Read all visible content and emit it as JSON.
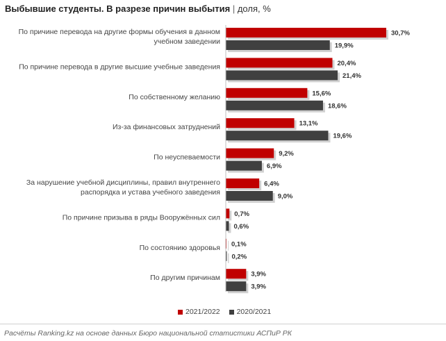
{
  "chart_data": {
    "type": "bar",
    "orientation": "horizontal",
    "title": "Выбывшие студенты. В разрезе причин выбытия",
    "title_separator": "|",
    "subtitle": "доля, %",
    "categories": [
      "По причине перевода на другие формы обучения в данном учебном заведении",
      "По причине перевода в другие высшие учебные заведения",
      "По собственному желанию",
      "Из-за финансовых затруднений",
      "По неуспеваемости",
      "За нарушение учебной дисциплины, правил внутреннего распорядка и устава учебного заведения",
      "По причине призыва в ряды Вооружённых сил",
      "По состоянию здоровья",
      "По другим причинам"
    ],
    "category_lines": [
      [
        "По причине перевода на другие формы обучения в данном",
        "учебном заведении"
      ],
      [
        "По причине перевода в другие высшие учебные заведения"
      ],
      [
        "По собственному желанию"
      ],
      [
        "Из-за финансовых затруднений"
      ],
      [
        "По неуспеваемости"
      ],
      [
        "За нарушение учебной дисциплины, правил внутреннего",
        "распорядка и устава учебного заведения"
      ],
      [
        "По причине призыва в ряды Вооружённых сил"
      ],
      [
        "По состоянию здоровья"
      ],
      [
        "По другим причинам"
      ]
    ],
    "series": [
      {
        "name": "2021/2022",
        "color": "#c00000",
        "values": [
          30.7,
          20.4,
          15.6,
          13.1,
          9.2,
          6.4,
          0.7,
          0.1,
          3.9
        ],
        "labels": [
          "30,7%",
          "20,4%",
          "15,6%",
          "13,1%",
          "9,2%",
          "6,4%",
          "0,7%",
          "0,1%",
          "3,9%"
        ]
      },
      {
        "name": "2020/2021",
        "color": "#404040",
        "values": [
          19.9,
          21.4,
          18.6,
          19.6,
          6.9,
          9.0,
          0.6,
          0.2,
          3.9
        ],
        "labels": [
          "19,9%",
          "21,4%",
          "18,6%",
          "19,6%",
          "6,9%",
          "9,0%",
          "0,6%",
          "0,2%",
          "3,9%"
        ]
      }
    ],
    "xlim": [
      0,
      30.7
    ],
    "grid": false,
    "legend_position": "bottom"
  },
  "source": "Расчёты Ranking.kz на основе данных Бюро национальной статистики АСПиР РК"
}
